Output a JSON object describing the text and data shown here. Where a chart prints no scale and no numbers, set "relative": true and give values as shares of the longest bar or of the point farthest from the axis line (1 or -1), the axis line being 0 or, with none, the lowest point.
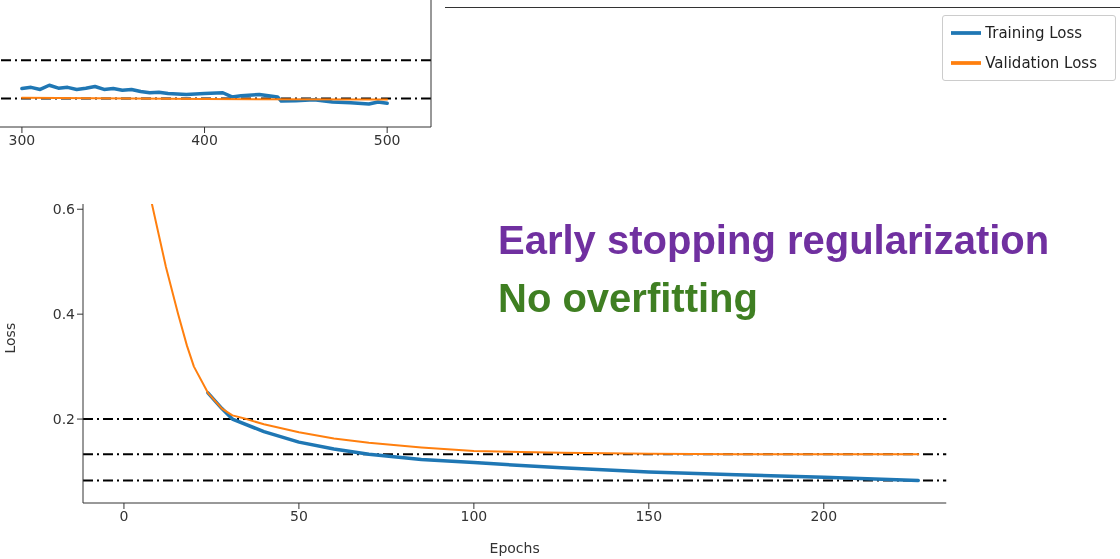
{
  "chart_data": [
    {
      "type": "line",
      "relative": true,
      "xlim": [
        288,
        524
      ],
      "xticks": [
        300,
        400,
        500
      ],
      "series": [
        {
          "color": "#1f77b4",
          "x": [
            300,
            305,
            310,
            315,
            320,
            325,
            330,
            335,
            340,
            345,
            350,
            355,
            360,
            365,
            370,
            375,
            380,
            390,
            400,
            410,
            415,
            420,
            430,
            440,
            442,
            450,
            460,
            470,
            480,
            490,
            495,
            500
          ],
          "values": [
            0.92,
            0.95,
            0.9,
            1.0,
            0.93,
            0.95,
            0.9,
            0.93,
            0.97,
            0.9,
            0.92,
            0.88,
            0.9,
            0.85,
            0.82,
            0.83,
            0.8,
            0.78,
            0.8,
            0.82,
            0.72,
            0.75,
            0.78,
            0.72,
            0.62,
            0.63,
            0.65,
            0.6,
            0.58,
            0.55,
            0.6,
            0.57
          ]
        },
        {
          "color": "#ff7f0e",
          "x": [
            300,
            400,
            500
          ],
          "values": [
            0.7,
            0.67,
            0.66
          ]
        }
      ],
      "ref_lines": [
        {
          "axis": "y",
          "value": 1.6,
          "color": "#000000",
          "line_style": "dashdot"
        },
        {
          "axis": "y",
          "value": 0.68,
          "color": "#000000",
          "line_style": "dashdot"
        }
      ]
    },
    {
      "type": "line",
      "xlabel": "Epochs",
      "ylabel": "Loss",
      "xlim": [
        -11.7,
        235
      ],
      "xticks": [
        0,
        50,
        100,
        150,
        200
      ],
      "ylim": [
        0.04,
        0.61
      ],
      "yticks": [
        0.2,
        0.4,
        0.6
      ],
      "legend": "top right",
      "annotations": [
        "Early stopping regularization",
        "No overfitting"
      ],
      "series": [
        {
          "name": "Training Loss",
          "color": "#1f77b4",
          "x": [
            24,
            28,
            31,
            40,
            50,
            60,
            70,
            85,
            100,
            125,
            150,
            175,
            200,
            227
          ],
          "values": [
            0.25,
            0.22,
            0.2,
            0.176,
            0.156,
            0.143,
            0.133,
            0.123,
            0.117,
            0.107,
            0.099,
            0.094,
            0.089,
            0.083
          ]
        },
        {
          "name": "Validation Loss",
          "color": "#ff7f0e",
          "x": [
            8,
            10,
            12,
            15.5,
            18,
            20,
            24,
            28,
            31,
            35,
            40,
            50,
            60,
            70,
            85,
            100,
            125,
            150,
            175,
            200,
            227
          ],
          "values": [
            0.61,
            0.55,
            0.49,
            0.4,
            0.34,
            0.3,
            0.25,
            0.22,
            0.207,
            0.2,
            0.19,
            0.175,
            0.163,
            0.155,
            0.146,
            0.139,
            0.136,
            0.134,
            0.133,
            0.133,
            0.133
          ]
        }
      ],
      "ref_lines": [
        {
          "axis": "y",
          "value": 0.2,
          "color": "#000000",
          "line_style": "dashdot"
        },
        {
          "axis": "y",
          "value": 0.133,
          "color": "#000000",
          "line_style": "dashdot"
        },
        {
          "axis": "y",
          "value": 0.083,
          "color": "#000000",
          "line_style": "dashdot"
        }
      ]
    }
  ]
}
